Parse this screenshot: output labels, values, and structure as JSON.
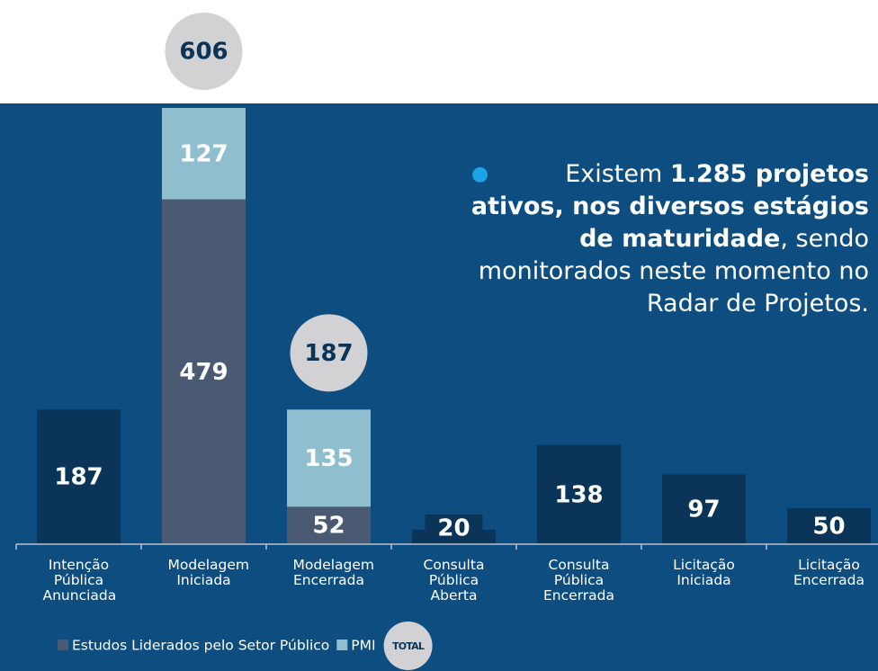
{
  "chart_data": {
    "type": "stacked_bar",
    "categories": [
      "Intenção Pública Anunciada",
      "Modelagem Iniciada",
      "Modelagem Encerrada",
      "Consulta Pública Aberta",
      "Consulta Pública Encerrada",
      "Licitação Iniciada",
      "Licitação Encerrada"
    ],
    "series": [
      {
        "name": "Estudos Liderados pelo Setor Público",
        "color": "#4a5a72",
        "values": [
          null,
          479,
          52,
          null,
          null,
          null,
          null
        ]
      },
      {
        "name": "PMI",
        "color": "#8fbfcf",
        "values": [
          null,
          127,
          135,
          null,
          null,
          null,
          null
        ]
      },
      {
        "color": "#0a3558",
        "values": [
          187,
          null,
          null,
          20,
          138,
          97,
          50
        ]
      }
    ],
    "totals": [
      null,
      606,
      187,
      null,
      null,
      null,
      null
    ],
    "totals_label": "TOTAL",
    "totals_color": "#d2d1d3",
    "ylim": [
      0,
      606
    ],
    "annotation": [
      "Existem ",
      "1.285 projetos ativos, nos diversos estágios de maturidade",
      ", sendo monitorados neste momento no Radar de Projetos."
    ]
  }
}
